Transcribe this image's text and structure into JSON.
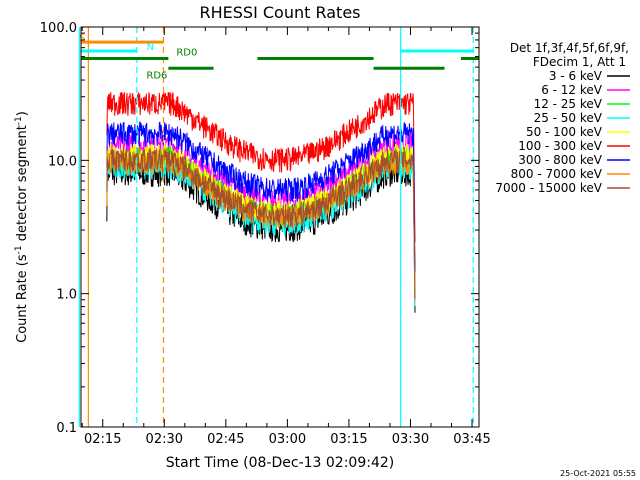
{
  "chart_data": {
    "type": "line",
    "title": "RHESSI Count Rates",
    "xlabel": "Start Time (08-Dec-13 02:09:42)",
    "ylabel_parts": [
      "Count Rate (s",
      "-1",
      " detector segment",
      "-1",
      ")"
    ],
    "yscale": "log",
    "ylim": [
      0.1,
      100
    ],
    "xlim_minutes": [
      0,
      97
    ],
    "x_ticks": [
      {
        "t": 5.3,
        "label": "02:15"
      },
      {
        "t": 20.3,
        "label": "02:30"
      },
      {
        "t": 35.3,
        "label": "02:45"
      },
      {
        "t": 50.3,
        "label": "03:00"
      },
      {
        "t": 65.3,
        "label": "03:15"
      },
      {
        "t": 80.3,
        "label": "03:30"
      },
      {
        "t": 95.3,
        "label": "03:45"
      }
    ],
    "y_ticks": [
      {
        "v": 0.1,
        "label": "0.1"
      },
      {
        "v": 1.0,
        "label": "1.0"
      },
      {
        "v": 10.0,
        "label": "10.0"
      },
      {
        "v": 100.0,
        "label": "100.0"
      }
    ],
    "legend_header": [
      "Det 1f,3f,4f,5f,6f,9f,",
      "FDecim 1, Att 1"
    ],
    "legend_placement": "right",
    "series": [
      {
        "name": "3 - 6 keV",
        "color": "#000000",
        "level": 8.0
      },
      {
        "name": "6 - 12 keV",
        "color": "#ff00ff",
        "level": 13.0
      },
      {
        "name": "12 - 25 keV",
        "color": "#00ff00",
        "level": 10.5
      },
      {
        "name": "25 - 50 keV",
        "color": "#00ffff",
        "level": 9.0
      },
      {
        "name": "50 - 100 keV",
        "color": "#ffff00",
        "level": 11.0
      },
      {
        "name": "100 - 300 keV",
        "color": "#ff0000",
        "level": 27.0
      },
      {
        "name": "300 - 800 keV",
        "color": "#0000ff",
        "level": 16.0
      },
      {
        "name": "800 - 7000 keV",
        "color": "#ff8c00",
        "level": 9.8
      },
      {
        "name": "7000 - 15000 keV",
        "color": "#a0522d",
        "level": 10.2
      }
    ],
    "data_range_minutes": [
      6.3,
      81.0
    ],
    "annotations": {
      "solid_cyan_lines": [
        -0.4,
        77.9
      ],
      "dashed_cyan_lines": [
        13.6,
        95.6
      ],
      "solid_orange_lines": [
        1.8
      ],
      "dashed_orange_lines": [
        20.1
      ],
      "flag_labels": [
        {
          "text": "S",
          "color": "#ff8c00"
        },
        {
          "text": "N",
          "color": "#00ffff"
        },
        {
          "text": "RD6",
          "color": "#008000"
        },
        {
          "text": "RD0",
          "color": "#008000"
        }
      ],
      "flag_bars": [
        {
          "color": "#ff8c00",
          "level": 77,
          "segments": [
            [
              0,
              20.1
            ]
          ]
        },
        {
          "color": "#00ffff",
          "level": 66,
          "segments": [
            [
              0,
              13.6
            ],
            [
              77.9,
              95.6
            ]
          ]
        },
        {
          "color": "#008000",
          "level": 58,
          "segments": [
            [
              0,
              21.3
            ],
            [
              43.0,
              71.3
            ],
            [
              92.6,
              97
            ]
          ]
        },
        {
          "color": "#008000",
          "level": 49,
          "segments": [
            [
              21.3,
              32.3
            ],
            [
              71.3,
              88.6
            ]
          ]
        }
      ]
    },
    "footer_date": "25-Oct-2021 05:55"
  }
}
